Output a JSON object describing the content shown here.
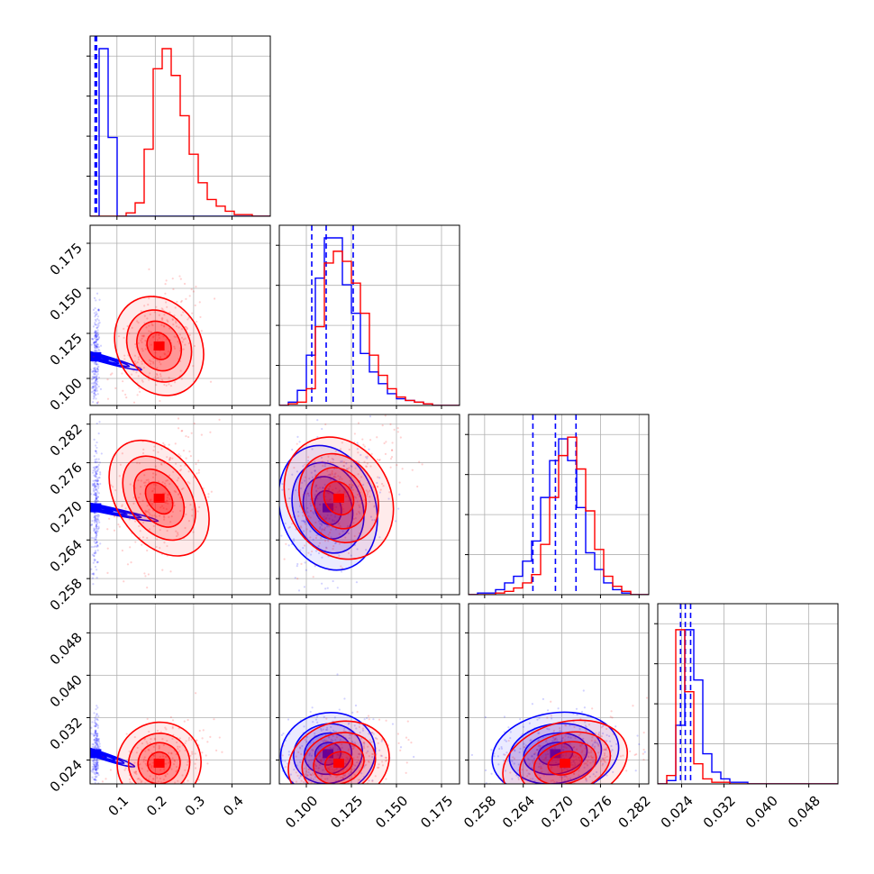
{
  "chart_data": {
    "type": "corner",
    "grid": true,
    "parameters": [
      {
        "index": 0,
        "ticks": [
          0.1,
          0.2,
          0.3,
          0.4
        ],
        "tick_labels": [
          "0.1",
          "0.2",
          "0.3",
          "0.4"
        ],
        "range": [
          0.03,
          0.5
        ]
      },
      {
        "index": 1,
        "ticks": [
          0.1,
          0.125,
          0.15,
          0.175
        ],
        "tick_labels": [
          "0.100",
          "0.125",
          "0.150",
          "0.175"
        ],
        "range": [
          0.085,
          0.185
        ]
      },
      {
        "index": 2,
        "ticks": [
          0.258,
          0.264,
          0.27,
          0.276,
          0.282
        ],
        "tick_labels": [
          "0.258",
          "0.264",
          "0.270",
          "0.276",
          "0.282"
        ],
        "range": [
          0.2555,
          0.2835
        ]
      },
      {
        "index": 3,
        "ticks": [
          0.024,
          0.032,
          0.04,
          0.048
        ],
        "tick_labels": [
          "0.024",
          "0.032",
          "0.040",
          "0.048"
        ],
        "range": [
          0.0195,
          0.0535
        ]
      }
    ],
    "series": [
      {
        "color": "#0000ff",
        "quantile_lines": [
          [
            0.043,
            0.045,
            0.047
          ],
          [
            0.103,
            0.111,
            0.126
          ],
          [
            0.2655,
            0.269,
            0.2722
          ],
          [
            0.0238,
            0.0247,
            0.0257
          ]
        ],
        "histograms": [
          [
            0.0,
            1.0,
            0.47,
            0.0,
            0.0,
            0.0,
            0.0,
            0.0,
            0.0,
            0.0,
            0.0,
            0.0,
            0.0,
            0.0,
            0.0,
            0.0,
            0.0,
            0.0,
            0.0,
            0.0
          ],
          [
            0.0,
            0.02,
            0.09,
            0.3,
            0.76,
            1.0,
            1.0,
            0.72,
            0.55,
            0.31,
            0.2,
            0.13,
            0.07,
            0.04,
            0.03,
            0.02,
            0.01,
            0.0,
            0.0,
            0.0
          ],
          [
            0.0,
            0.01,
            0.01,
            0.03,
            0.07,
            0.11,
            0.2,
            0.32,
            0.58,
            0.8,
            0.93,
            0.8,
            0.52,
            0.25,
            0.15,
            0.07,
            0.03,
            0.01,
            0.0,
            0.0
          ],
          [
            0.0,
            0.02,
            0.35,
            0.92,
            0.62,
            0.18,
            0.07,
            0.03,
            0.01,
            0.01,
            0.0,
            0.0,
            0.0,
            0.0,
            0.0,
            0.0,
            0.0,
            0.0,
            0.0,
            0.0
          ]
        ],
        "mean": [
          0.045,
          0.112,
          0.269,
          0.0252
        ],
        "std": [
          0.004,
          0.012,
          0.0045,
          0.0035
        ]
      },
      {
        "color": "#ff0000",
        "quantile_lines": [],
        "histograms": [
          [
            0.0,
            0.0,
            0.0,
            0.0,
            0.02,
            0.08,
            0.4,
            0.88,
            1.0,
            0.84,
            0.6,
            0.37,
            0.2,
            0.1,
            0.06,
            0.03,
            0.01,
            0.01,
            0.0,
            0.0
          ],
          [
            0.0,
            0.01,
            0.02,
            0.1,
            0.47,
            0.85,
            0.92,
            0.86,
            0.73,
            0.55,
            0.3,
            0.18,
            0.1,
            0.05,
            0.03,
            0.02,
            0.01,
            0.0,
            0.0,
            0.0
          ],
          [
            0.0,
            0.0,
            0.0,
            0.01,
            0.02,
            0.04,
            0.07,
            0.12,
            0.3,
            0.58,
            0.83,
            0.94,
            0.75,
            0.5,
            0.27,
            0.11,
            0.05,
            0.02,
            0.0,
            0.0
          ],
          [
            0.0,
            0.05,
            0.92,
            0.55,
            0.12,
            0.03,
            0.01,
            0.01,
            0.0,
            0.0,
            0.0,
            0.0,
            0.0,
            0.0,
            0.0,
            0.0,
            0.0,
            0.0,
            0.0,
            0.0
          ]
        ],
        "mean": [
          0.21,
          0.118,
          0.2705,
          0.0234
        ],
        "std": [
          0.05,
          0.013,
          0.0045,
          0.0035
        ]
      }
    ]
  }
}
